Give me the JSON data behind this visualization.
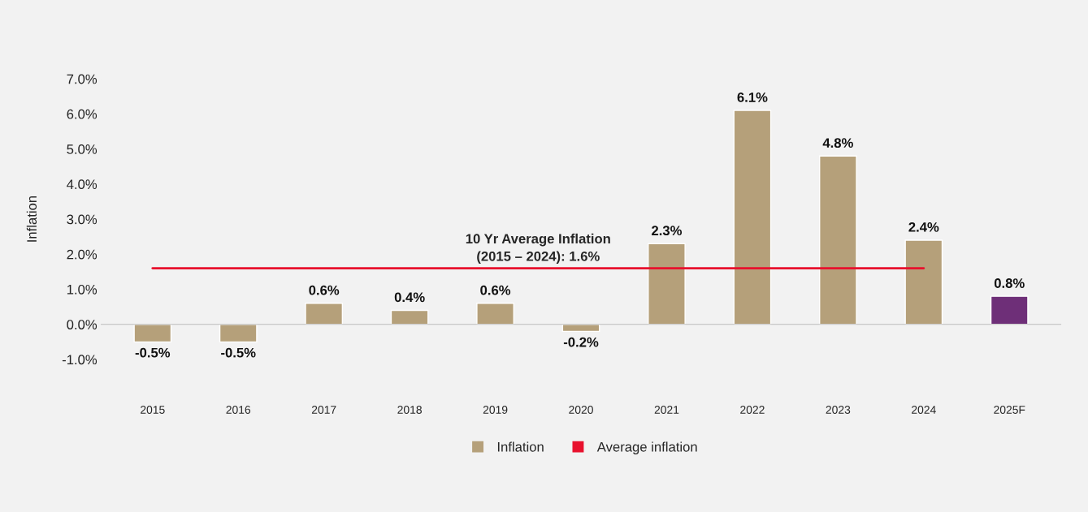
{
  "chart_data": {
    "type": "bar",
    "categories": [
      "2015",
      "2016",
      "2017",
      "2018",
      "2019",
      "2020",
      "2021",
      "2022",
      "2023",
      "2024",
      "2025F"
    ],
    "ylabel": "Inflation",
    "series": [
      {
        "name": "Inflation",
        "color": "#b5a07a",
        "colors": [
          "#b5a07a",
          "#b5a07a",
          "#b5a07a",
          "#b5a07a",
          "#b5a07a",
          "#b5a07a",
          "#b5a07a",
          "#b5a07a",
          "#b5a07a",
          "#b5a07a",
          "#6e2f78"
        ],
        "values": [
          -0.5,
          -0.5,
          0.6,
          0.4,
          0.6,
          -0.2,
          2.3,
          6.1,
          4.8,
          2.4,
          0.8
        ],
        "value_labels": [
          "-0.5%",
          "-0.5%",
          "0.6%",
          "0.4%",
          "0.6%",
          "-0.2%",
          "2.3%",
          "6.1%",
          "4.8%",
          "2.4%",
          "0.8%"
        ]
      },
      {
        "name": "Average inflation",
        "type": "line",
        "color": "#e8112d",
        "values": [
          1.6,
          1.6,
          1.6,
          1.6,
          1.6,
          1.6,
          1.6,
          1.6,
          1.6,
          1.6,
          null
        ]
      }
    ],
    "annotations": [
      "10 Yr Average Inflation\n(2015 – 2024): 1.6%"
    ],
    "ylim": [
      -1.0,
      7.0
    ],
    "yticks": [
      {
        "value": -1,
        "label": "-1.0%"
      },
      {
        "value": 0,
        "label": "0.0%"
      },
      {
        "value": 1,
        "label": "1.0%"
      },
      {
        "value": 2,
        "label": "2.0%"
      },
      {
        "value": 3,
        "label": "3.0%"
      },
      {
        "value": 4,
        "label": "4.0%"
      },
      {
        "value": 5,
        "label": "5.0%"
      },
      {
        "value": 6,
        "label": "6.0%"
      },
      {
        "value": 7,
        "label": "7.0%"
      }
    ],
    "legend": "bottom"
  }
}
